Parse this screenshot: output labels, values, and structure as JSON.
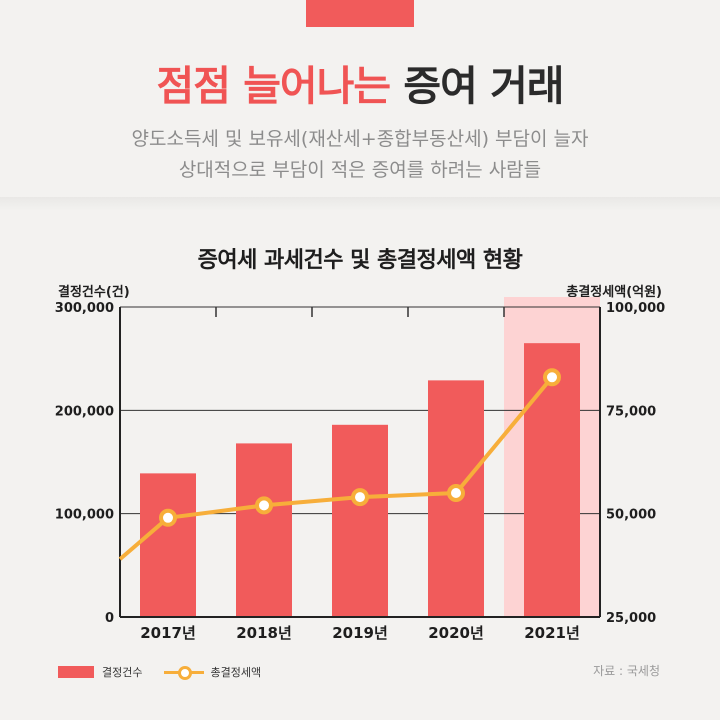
{
  "header": {
    "title_red": "점점 늘어나는",
    "title_dark": "증여 거래",
    "subtitle_line1": "양도소득세 및 보유세(재산세+종합부동산세) 부담이 늘자",
    "subtitle_line2": "상대적으로 부담이 적은 증여를 하려는 사람들"
  },
  "colors": {
    "accent": "#f15b5b",
    "line": "#f7ae3a",
    "highlight": "#fdd3d3",
    "text": "#1e1e1e"
  },
  "chart_data": {
    "type": "bar",
    "title": "증여세 과세건수 및 총결정세액 현황",
    "categories": [
      "2017년",
      "2018년",
      "2019년",
      "2020년",
      "2021년"
    ],
    "y_left": {
      "label": "결정건수(건)",
      "range": [
        0,
        300000
      ],
      "ticks": [
        "0",
        "100,000",
        "200,000",
        "300,000"
      ],
      "tick_values": [
        0,
        100000,
        200000,
        300000
      ]
    },
    "y_right": {
      "label": "총결정세액(억원)",
      "range": [
        25000,
        100000
      ],
      "ticks": [
        "25,000",
        "50,000",
        "75,000",
        "100,000"
      ],
      "tick_values": [
        25000,
        50000,
        75000,
        100000
      ]
    },
    "series": [
      {
        "name": "결정건수",
        "kind": "bar",
        "axis": "left",
        "values": [
          139000,
          168000,
          186000,
          229000,
          265000
        ]
      },
      {
        "name": "총결정세액",
        "kind": "line",
        "axis": "right",
        "values": [
          49000,
          52000,
          54000,
          55000,
          83000
        ],
        "lead_in_value": 39000
      }
    ],
    "highlight_category": "2021년",
    "grid": true,
    "legend": "bottom-left"
  },
  "source": "자료 : 국세청"
}
